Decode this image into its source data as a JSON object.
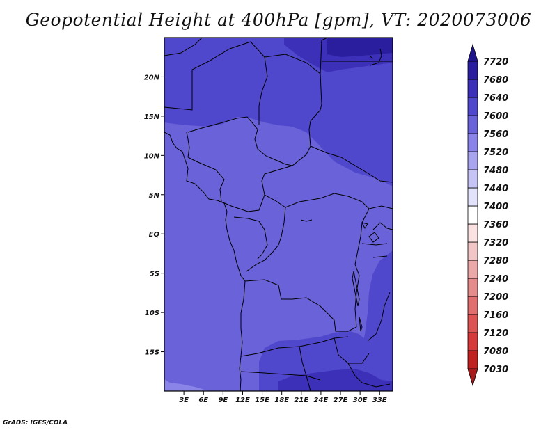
{
  "title": "Geopotential Height at 400hPa [gpm], VT: 2020073006",
  "credit": "GrADS: IGES/COLA",
  "map": {
    "lon_range": [
      0,
      35
    ],
    "lat_range": [
      -20,
      25
    ],
    "x_ticks": [
      {
        "lon": 3,
        "label": "3E"
      },
      {
        "lon": 6,
        "label": "6E"
      },
      {
        "lon": 9,
        "label": "9E"
      },
      {
        "lon": 12,
        "label": "12E"
      },
      {
        "lon": 15,
        "label": "15E"
      },
      {
        "lon": 18,
        "label": "18E"
      },
      {
        "lon": 21,
        "label": "21E"
      },
      {
        "lon": 24,
        "label": "24E"
      },
      {
        "lon": 27,
        "label": "27E"
      },
      {
        "lon": 30,
        "label": "30E"
      },
      {
        "lon": 33,
        "label": "33E"
      }
    ],
    "y_ticks": [
      {
        "lat": 20,
        "label": "20N"
      },
      {
        "lat": 15,
        "label": "15N"
      },
      {
        "lat": 10,
        "label": "10N"
      },
      {
        "lat": 5,
        "label": "5N"
      },
      {
        "lat": 0,
        "label": "EQ"
      },
      {
        "lat": -5,
        "label": "5S"
      },
      {
        "lat": -10,
        "label": "10S"
      },
      {
        "lat": -15,
        "label": "15S"
      }
    ]
  },
  "colorbar": {
    "levels": [
      7030,
      7080,
      7120,
      7160,
      7200,
      7240,
      7280,
      7320,
      7360,
      7400,
      7440,
      7480,
      7520,
      7560,
      7600,
      7640,
      7680,
      7720
    ],
    "colors": [
      "#a51c1c",
      "#c02222",
      "#d43a3a",
      "#dc5454",
      "#e07070",
      "#e48c8c",
      "#eaa8a8",
      "#f2c6c6",
      "#fae2e2",
      "#ffffff",
      "#e2e2fa",
      "#c6c4f4",
      "#a8a4ee",
      "#8a84e8",
      "#6a62d8",
      "#5048cc",
      "#3c30b8",
      "#2a1e9e",
      "#20148c"
    ]
  }
}
